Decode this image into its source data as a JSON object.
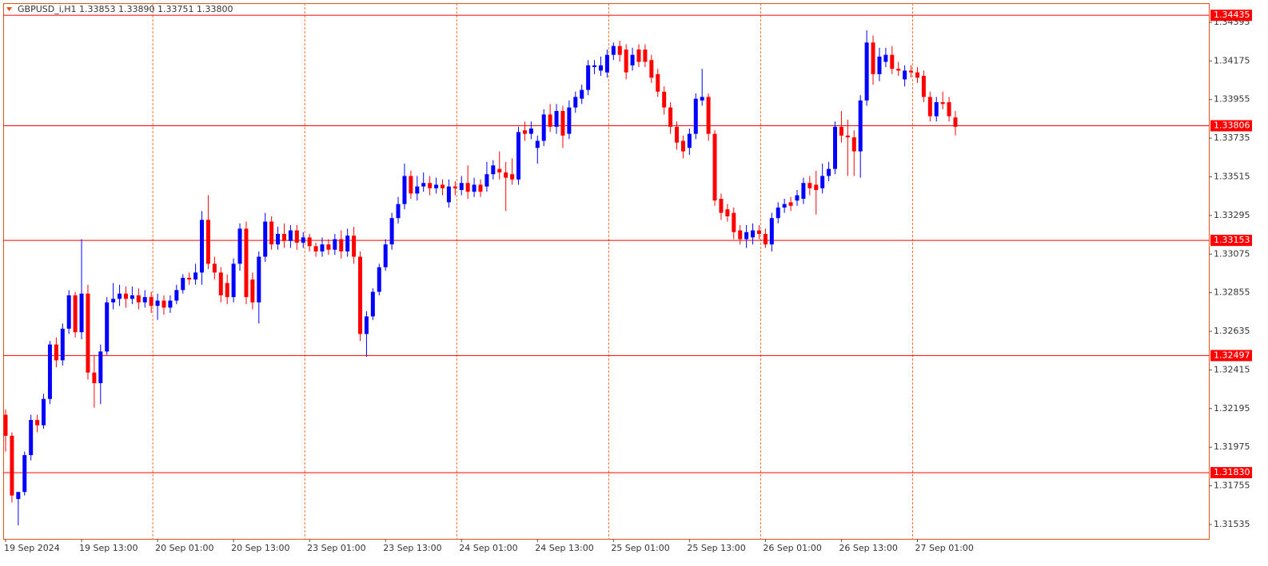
{
  "chart_data": {
    "type": "candlestick",
    "title": "GBPUSD_i,H1  1.33853 1.33890 1.33751 1.33800",
    "up_color": "#0000ff",
    "down_color": "#ff0000",
    "level_color": "#ff0000",
    "ylim": [
      1.31453,
      1.34504
    ],
    "yticks": [
      1.34395,
      1.34175,
      1.33955,
      1.33735,
      1.33515,
      1.33295,
      1.33075,
      1.32855,
      1.32635,
      1.32415,
      1.32195,
      1.31975,
      1.31755,
      1.31535
    ],
    "levels": [
      1.34435,
      1.33806,
      1.33153,
      1.32497,
      {
        "value": 1.3183,
        "label": "1.31830"
      }
    ],
    "xticks": [
      {
        "value": 0,
        "label": "19 Sep 2024"
      },
      {
        "value": 12,
        "label": "19 Sep 13:00"
      },
      {
        "value": 24,
        "label": "20 Sep 01:00"
      },
      {
        "value": 36,
        "label": "20 Sep 13:00"
      },
      {
        "value": 48,
        "label": "23 Sep 01:00"
      },
      {
        "value": 60,
        "label": "23 Sep 13:00"
      },
      {
        "value": 72,
        "label": "24 Sep 01:00"
      },
      {
        "value": 84,
        "label": "24 Sep 13:00"
      },
      {
        "value": 96,
        "label": "25 Sep 01:00"
      },
      {
        "value": 108,
        "label": "25 Sep 13:00"
      },
      {
        "value": 120,
        "label": "26 Sep 01:00"
      },
      {
        "value": 132,
        "label": "26 Sep 13:00"
      },
      {
        "value": 144,
        "label": "27 Sep 01:00"
      }
    ],
    "open": [
      1.3216,
      1.3204,
      1.3168,
      1.3172,
      1.3193,
      1.3213,
      1.321,
      1.3225,
      1.3256,
      1.3247,
      1.3265,
      1.3284,
      1.3263,
      1.3285,
      1.324,
      1.3234,
      1.3252,
      1.328,
      1.3282,
      1.3285,
      1.3282,
      1.3284,
      1.328,
      1.3283,
      1.3278,
      1.3281,
      1.3277,
      1.3281,
      1.3287,
      1.3294,
      1.3293,
      1.3297,
      1.3327,
      1.3302,
      1.3297,
      1.3291,
      1.3283,
      1.3302,
      1.3322,
      1.3293,
      1.328,
      1.3306,
      1.3326,
      1.3313,
      1.3319,
      1.3315,
      1.3321,
      1.3314,
      1.3317,
      1.3312,
      1.3309,
      1.3313,
      1.331,
      1.3316,
      1.3309,
      1.3318,
      1.3306,
      1.3262,
      1.3272,
      1.3286,
      1.33,
      1.3313,
      1.3328,
      1.3336,
      1.3352,
      1.3342,
      1.3346,
      1.3348,
      1.3345,
      1.3347,
      1.3337,
      1.3346,
      1.3344,
      1.3348,
      1.3343,
      1.3347,
      1.3346,
      1.3353,
      1.3356,
      1.3354,
      1.3353,
      1.335,
      1.3378,
      1.3376,
      1.3368,
      1.3372,
      1.3387,
      1.338,
      1.3389,
      1.3376,
      1.3391,
      1.3396,
      1.3401,
      1.3414,
      1.3412,
      1.3411,
      1.3421,
      1.3426,
      1.3424,
      1.3415,
      1.3424,
      1.3424,
      1.3418,
      1.341,
      1.34,
      1.3391,
      1.338,
      1.3372,
      1.3368,
      1.3376,
      1.3395,
      1.3397,
      1.3376,
      1.3339,
      1.3333,
      1.3331,
      1.3321,
      1.3316,
      1.3317,
      1.3321,
      1.3319,
      1.3313,
      1.3328,
      1.3334,
      1.3337,
      1.3338,
      1.3339,
      1.3348,
      1.3347,
      1.3345,
      1.3352,
      1.3356,
      1.338,
      1.3375,
      1.3374,
      1.3366,
      1.3395,
      1.3428,
      1.341,
      1.3417,
      1.3421,
      1.3413,
      1.3407,
      1.3412,
      1.3411,
      1.3409,
      1.3397,
      1.3386,
      1.3394,
      1.3394,
      1.33853
    ],
    "high": [
      1.3219,
      1.3206,
      1.3172,
      1.3195,
      1.3216,
      1.3216,
      1.3228,
      1.3258,
      1.326,
      1.3268,
      1.3287,
      1.3286,
      1.3316,
      1.329,
      1.325,
      1.3256,
      1.3283,
      1.3291,
      1.329,
      1.3289,
      1.3289,
      1.3288,
      1.3287,
      1.3286,
      1.3285,
      1.3284,
      1.3284,
      1.329,
      1.3296,
      1.3297,
      1.3302,
      1.3332,
      1.3341,
      1.3306,
      1.33,
      1.3296,
      1.3305,
      1.3325,
      1.3326,
      1.3297,
      1.3309,
      1.3331,
      1.3329,
      1.3323,
      1.3325,
      1.3324,
      1.3324,
      1.332,
      1.3319,
      1.3314,
      1.3317,
      1.3316,
      1.3319,
      1.3321,
      1.3322,
      1.3323,
      1.3309,
      1.3275,
      1.3288,
      1.3302,
      1.3316,
      1.3331,
      1.334,
      1.3359,
      1.3355,
      1.3352,
      1.3354,
      1.3352,
      1.3351,
      1.335,
      1.335,
      1.3349,
      1.3352,
      1.3358,
      1.3351,
      1.335,
      1.336,
      1.3361,
      1.3366,
      1.336,
      1.3362,
      1.338,
      1.3383,
      1.3383,
      1.3375,
      1.339,
      1.3393,
      1.3393,
      1.3392,
      1.3395,
      1.34,
      1.3404,
      1.3418,
      1.3418,
      1.342,
      1.3424,
      1.3428,
      1.3429,
      1.3427,
      1.3425,
      1.3427,
      1.3427,
      1.3421,
      1.3413,
      1.3403,
      1.3394,
      1.3383,
      1.3375,
      1.3379,
      1.3399,
      1.3413,
      1.3399,
      1.3378,
      1.3342,
      1.3336,
      1.3334,
      1.3324,
      1.3324,
      1.3325,
      1.3324,
      1.3322,
      1.3331,
      1.3337,
      1.3339,
      1.334,
      1.3344,
      1.3351,
      1.3352,
      1.3355,
      1.3359,
      1.336,
      1.3383,
      1.3389,
      1.3384,
      1.3378,
      1.3398,
      1.3435,
      1.3432,
      1.3425,
      1.3425,
      1.3426,
      1.3417,
      1.3415,
      1.3415,
      1.3414,
      1.3412,
      1.34,
      1.3397,
      1.34,
      1.3397,
      1.3389
    ],
    "low": [
      1.3195,
      1.3166,
      1.3153,
      1.317,
      1.319,
      1.3206,
      1.3208,
      1.3222,
      1.3243,
      1.3244,
      1.3262,
      1.326,
      1.3259,
      1.3236,
      1.322,
      1.3222,
      1.325,
      1.3276,
      1.3278,
      1.3277,
      1.3279,
      1.3276,
      1.3277,
      1.3274,
      1.327,
      1.3273,
      1.3274,
      1.3279,
      1.3285,
      1.329,
      1.329,
      1.329,
      1.3299,
      1.3293,
      1.328,
      1.3279,
      1.328,
      1.3298,
      1.3279,
      1.3276,
      1.3268,
      1.3303,
      1.331,
      1.331,
      1.3311,
      1.3311,
      1.331,
      1.3311,
      1.3309,
      1.3306,
      1.3306,
      1.3307,
      1.3307,
      1.3305,
      1.3306,
      1.3302,
      1.3258,
      1.3249,
      1.327,
      1.3284,
      1.3298,
      1.331,
      1.3325,
      1.3333,
      1.3339,
      1.3338,
      1.3343,
      1.3341,
      1.3342,
      1.3341,
      1.3334,
      1.3341,
      1.3341,
      1.3339,
      1.334,
      1.334,
      1.3343,
      1.335,
      1.335,
      1.3332,
      1.3347,
      1.3347,
      1.3372,
      1.3373,
      1.3359,
      1.3369,
      1.3377,
      1.3376,
      1.3368,
      1.3373,
      1.3388,
      1.3393,
      1.3398,
      1.341,
      1.3409,
      1.3408,
      1.3418,
      1.3417,
      1.3407,
      1.3412,
      1.3414,
      1.3414,
      1.3405,
      1.3397,
      1.3387,
      1.3376,
      1.3367,
      1.3362,
      1.3364,
      1.3373,
      1.3392,
      1.3372,
      1.3335,
      1.3327,
      1.3326,
      1.3316,
      1.3313,
      1.3311,
      1.3313,
      1.3316,
      1.3311,
      1.3309,
      1.3325,
      1.3331,
      1.3332,
      1.3335,
      1.3336,
      1.3341,
      1.333,
      1.3342,
      1.3349,
      1.3353,
      1.3371,
      1.3352,
      1.3352,
      1.3351,
      1.3392,
      1.3404,
      1.3406,
      1.3414,
      1.341,
      1.3409,
      1.3403,
      1.3408,
      1.3405,
      1.3394,
      1.3383,
      1.3383,
      1.339,
      1.3383,
      1.33751
    ],
    "close": [
      1.3204,
      1.317,
      1.3172,
      1.3193,
      1.3213,
      1.321,
      1.3225,
      1.3256,
      1.3247,
      1.3265,
      1.3284,
      1.3263,
      1.3285,
      1.324,
      1.3234,
      1.3252,
      1.328,
      1.3282,
      1.3285,
      1.3282,
      1.3284,
      1.328,
      1.3283,
      1.3278,
      1.3281,
      1.3277,
      1.3281,
      1.3287,
      1.3294,
      1.3293,
      1.3297,
      1.3327,
      1.3302,
      1.3297,
      1.3284,
      1.3283,
      1.3302,
      1.3322,
      1.3283,
      1.328,
      1.3306,
      1.3326,
      1.3313,
      1.3319,
      1.3315,
      1.3321,
      1.3314,
      1.3317,
      1.3312,
      1.3309,
      1.3313,
      1.331,
      1.3316,
      1.3309,
      1.3318,
      1.3306,
      1.3262,
      1.3272,
      1.3286,
      1.33,
      1.3313,
      1.3328,
      1.3336,
      1.3352,
      1.3342,
      1.3346,
      1.3348,
      1.3345,
      1.3347,
      1.3345,
      1.3346,
      1.3345,
      1.3348,
      1.3343,
      1.3347,
      1.3343,
      1.3353,
      1.3358,
      1.3354,
      1.3351,
      1.335,
      1.3377,
      1.3376,
      1.3379,
      1.3372,
      1.3387,
      1.338,
      1.3389,
      1.3375,
      1.3391,
      1.3397,
      1.3401,
      1.3415,
      1.3415,
      1.3415,
      1.3421,
      1.3426,
      1.3421,
      1.3411,
      1.3421,
      1.3417,
      1.3417,
      1.3408,
      1.34,
      1.3391,
      1.338,
      1.3371,
      1.3366,
      1.3376,
      1.3396,
      1.3397,
      1.3376,
      1.3338,
      1.3331,
      1.3329,
      1.332,
      1.3316,
      1.332,
      1.3321,
      1.3319,
      1.3313,
      1.3328,
      1.3334,
      1.3336,
      1.3335,
      1.3341,
      1.3348,
      1.3345,
      1.3344,
      1.3352,
      1.3356,
      1.338,
      1.3375,
      1.3374,
      1.3366,
      1.3395,
      1.3428,
      1.341,
      1.342,
      1.3421,
      1.3413,
      1.3412,
      1.3412,
      1.3411,
      1.3408,
      1.3397,
      1.3386,
      1.3394,
      1.3393,
      1.3386,
      1.338
    ]
  }
}
